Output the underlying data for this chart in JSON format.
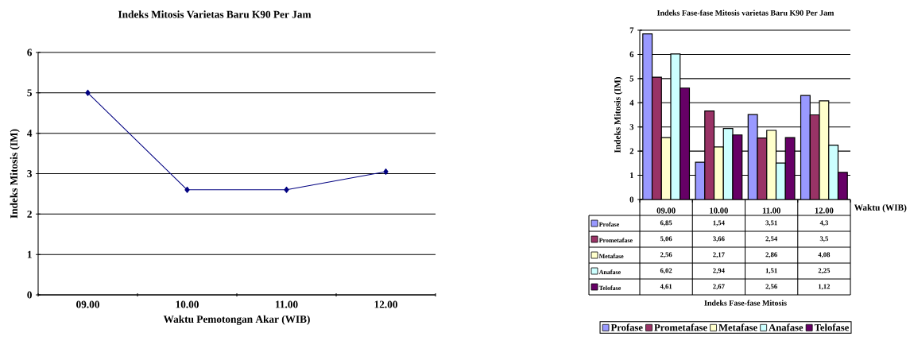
{
  "chart_data": [
    {
      "type": "line",
      "title": "Indeks Mitosis Varietas Baru K90 Per Jam",
      "xlabel": "Waktu Pemotongan Akar (WIB)",
      "ylabel": "Indeks Mitosis (IM)",
      "categories": [
        "09.00",
        "10.00",
        "11.00",
        "12.00"
      ],
      "series": [
        {
          "color": "#000080",
          "values": [
            5,
            2.6,
            2.6,
            3.05
          ]
        }
      ],
      "ylim": [
        0,
        6
      ],
      "yticks": [
        0,
        1,
        2,
        3,
        4,
        5,
        6
      ],
      "grid": "y",
      "marker": "diamond"
    },
    {
      "type": "bar",
      "title": "Indeks Fase-fase Mitosis varietas Baru K90 Per Jam",
      "xlabel": "Waktu (WIB)",
      "ylabel": "Indeks Mitosis (IM)",
      "categories": [
        "09.00",
        "10.00",
        "11.00",
        "12.00"
      ],
      "series": [
        {
          "name": "Profase",
          "color": "#9999ff",
          "values": [
            6.85,
            1.54,
            3.51,
            4.3
          ],
          "value_labels": [
            "6,85",
            "1,54",
            "3,51",
            "4,3"
          ]
        },
        {
          "name": "Prometafase",
          "color": "#993366",
          "values": [
            5.06,
            3.66,
            2.54,
            3.5
          ],
          "value_labels": [
            "5,06",
            "3,66",
            "2,54",
            "3,5"
          ]
        },
        {
          "name": "Metafase",
          "color": "#ffffcc",
          "values": [
            2.56,
            2.17,
            2.86,
            4.08
          ],
          "value_labels": [
            "2,56",
            "2,17",
            "2,86",
            "4,08"
          ]
        },
        {
          "name": "Anafase",
          "color": "#ccffff",
          "values": [
            6.02,
            2.94,
            1.51,
            2.25
          ],
          "value_labels": [
            "6,02",
            "2,94",
            "1,51",
            "2,25"
          ]
        },
        {
          "name": "Telofase",
          "color": "#660066",
          "values": [
            4.61,
            2.67,
            2.56,
            1.12
          ],
          "value_labels": [
            "4,61",
            "2,67",
            "2,56",
            "1,12"
          ]
        }
      ],
      "ylim": [
        0,
        7
      ],
      "yticks": [
        0,
        1,
        2,
        3,
        4,
        5,
        6,
        7
      ],
      "grid": "y",
      "legend": "bottom",
      "annotations": [
        "Indeks Fase-fase Mitosis"
      ]
    }
  ]
}
